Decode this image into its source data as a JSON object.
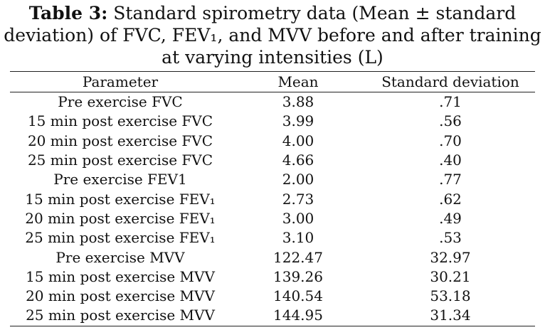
{
  "caption": {
    "label": "Table 3:",
    "line1_rest": " Standard spirometry data (Mean ± standard",
    "line2": "deviation) of FVC, FEV₁, and MVV before and after training",
    "line3": "at varying intensities (L)"
  },
  "table": {
    "headers": [
      "Parameter",
      "Mean",
      "Standard deviation"
    ],
    "rows": [
      {
        "parameter": "Pre exercise FVC",
        "mean": "3.88",
        "sd": ".71"
      },
      {
        "parameter": "15 min post exercise FVC",
        "mean": "3.99",
        "sd": ".56"
      },
      {
        "parameter": "20 min post exercise FVC",
        "mean": "4.00",
        "sd": ".70"
      },
      {
        "parameter": "25 min post exercise FVC",
        "mean": "4.66",
        "sd": ".40"
      },
      {
        "parameter": "Pre exercise FEV1",
        "mean": "2.00",
        "sd": ".77"
      },
      {
        "parameter": "15 min post exercise FEV₁",
        "mean": "2.73",
        "sd": ".62"
      },
      {
        "parameter": "20 min post exercise FEV₁",
        "mean": "3.00",
        "sd": ".49"
      },
      {
        "parameter": "25 min post exercise FEV₁",
        "mean": "3.10",
        "sd": ".53"
      },
      {
        "parameter": "Pre exercise MVV",
        "mean": "122.47",
        "sd": "32.97"
      },
      {
        "parameter": "15 min post exercise MVV",
        "mean": "139.26",
        "sd": "30.21"
      },
      {
        "parameter": "20 min post exercise MVV",
        "mean": "140.54",
        "sd": "53.18"
      },
      {
        "parameter": "25 min post exercise MVV",
        "mean": "144.95",
        "sd": "31.34"
      }
    ]
  }
}
